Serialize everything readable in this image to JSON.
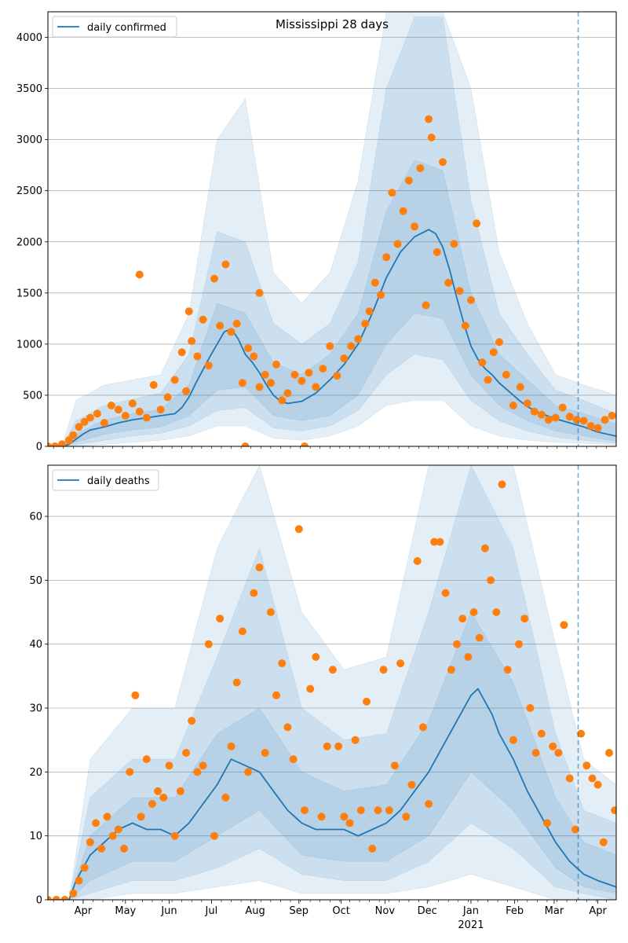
{
  "chart_data": [
    {
      "type": "line",
      "title": "Mississippi 28 days",
      "legend": "daily confirmed",
      "legend_position": "top-left",
      "ylim": [
        0,
        4250
      ],
      "yticks": [
        0,
        500,
        1000,
        1500,
        2000,
        2500,
        3000,
        3500,
        4000
      ],
      "xlim_days": [
        0,
        403
      ],
      "xlabel": "",
      "ylabel": "",
      "grid": "y",
      "vline_day": 376,
      "line": {
        "name": "daily confirmed",
        "days": [
          0,
          10,
          15,
          20,
          25,
          30,
          40,
          50,
          60,
          70,
          80,
          90,
          95,
          100,
          105,
          110,
          115,
          120,
          125,
          130,
          135,
          140,
          145,
          150,
          155,
          160,
          165,
          170,
          175,
          180,
          190,
          200,
          210,
          220,
          230,
          240,
          250,
          260,
          270,
          275,
          280,
          285,
          290,
          295,
          300,
          305,
          310,
          315,
          320,
          325,
          330,
          335,
          340,
          345,
          350,
          360,
          370,
          380,
          390,
          403
        ],
        "values": [
          0,
          0,
          20,
          70,
          120,
          160,
          190,
          230,
          260,
          280,
          300,
          320,
          380,
          480,
          620,
          750,
          880,
          1000,
          1120,
          1150,
          1050,
          900,
          820,
          720,
          600,
          500,
          440,
          420,
          430,
          440,
          520,
          650,
          800,
          1000,
          1300,
          1650,
          1900,
          2050,
          2120,
          2080,
          1950,
          1720,
          1450,
          1200,
          980,
          850,
          760,
          700,
          620,
          560,
          500,
          440,
          390,
          350,
          320,
          270,
          230,
          190,
          140,
          100
        ]
      },
      "bands": [
        {
          "days": [
            0,
            10,
            20,
            40,
            60,
            80,
            100,
            120,
            140,
            160,
            180,
            200,
            220,
            240,
            260,
            280,
            300,
            320,
            340,
            360,
            380,
            403
          ],
          "lower": [
            0,
            0,
            40,
            120,
            160,
            190,
            300,
            550,
            580,
            300,
            250,
            300,
            500,
            1000,
            1300,
            1250,
            700,
            400,
            250,
            150,
            100,
            50
          ],
          "upper": [
            0,
            0,
            120,
            260,
            320,
            360,
            600,
            1400,
            1300,
            820,
            700,
            900,
            1300,
            2300,
            2800,
            2700,
            1500,
            900,
            650,
            400,
            320,
            220
          ]
        },
        {
          "days": [
            0,
            10,
            20,
            40,
            60,
            80,
            100,
            120,
            140,
            160,
            180,
            200,
            220,
            240,
            260,
            280,
            300,
            320,
            340,
            360,
            380,
            403
          ],
          "lower": [
            0,
            0,
            15,
            60,
            100,
            130,
            200,
            350,
            380,
            180,
            150,
            200,
            350,
            700,
            900,
            850,
            450,
            250,
            150,
            90,
            60,
            30
          ],
          "upper": [
            0,
            0,
            250,
            400,
            460,
            520,
            900,
            2100,
            2000,
            1200,
            1000,
            1200,
            1800,
            3500,
            4200,
            4200,
            2400,
            1300,
            900,
            550,
            450,
            320
          ]
        },
        {
          "days": [
            0,
            10,
            20,
            40,
            60,
            80,
            100,
            120,
            140,
            160,
            180,
            200,
            220,
            240,
            260,
            280,
            300,
            320,
            340,
            360,
            380,
            403
          ],
          "lower": [
            0,
            0,
            0,
            20,
            40,
            60,
            100,
            200,
            200,
            80,
            60,
            100,
            200,
            400,
            450,
            450,
            200,
            100,
            60,
            40,
            30,
            10
          ],
          "upper": [
            0,
            0,
            450,
            600,
            650,
            700,
            1300,
            3000,
            3400,
            1700,
            1400,
            1700,
            2600,
            4300,
            4300,
            4300,
            3500,
            1900,
            1200,
            700,
            600,
            500
          ]
        }
      ],
      "scatter": {
        "days": [
          0,
          5,
          10,
          15,
          18,
          22,
          26,
          30,
          35,
          40,
          45,
          50,
          55,
          60,
          65,
          70,
          75,
          80,
          85,
          90,
          95,
          98,
          102,
          106,
          110,
          114,
          118,
          122,
          126,
          130,
          134,
          138,
          142,
          146,
          150,
          154,
          158,
          162,
          166,
          170,
          175,
          180,
          185,
          190,
          195,
          200,
          205,
          210,
          215,
          220,
          225,
          228,
          232,
          236,
          240,
          244,
          248,
          252,
          256,
          260,
          264,
          268,
          272,
          276,
          280,
          284,
          288,
          292,
          296,
          300,
          304,
          308,
          312,
          316,
          320,
          325,
          330,
          335,
          340,
          345,
          350,
          355,
          360,
          365,
          370,
          375,
          380,
          385,
          390,
          395,
          400,
          65,
          100,
          150,
          270,
          140,
          182
        ],
        "values": [
          0,
          0,
          20,
          60,
          110,
          190,
          240,
          280,
          320,
          230,
          400,
          360,
          300,
          420,
          340,
          280,
          600,
          360,
          480,
          650,
          920,
          540,
          1030,
          880,
          1240,
          790,
          1640,
          1180,
          1780,
          1120,
          1200,
          620,
          960,
          880,
          580,
          700,
          620,
          800,
          450,
          520,
          700,
          640,
          720,
          580,
          760,
          980,
          690,
          860,
          980,
          1050,
          1200,
          1320,
          1600,
          1480,
          1850,
          2480,
          1980,
          2300,
          2600,
          2150,
          2720,
          1380,
          3020,
          1900,
          2780,
          1600,
          1980,
          1520,
          1180,
          1430,
          2180,
          820,
          650,
          920,
          1020,
          700,
          400,
          580,
          420,
          340,
          310,
          260,
          280,
          380,
          290,
          260,
          250,
          200,
          180,
          260,
          300,
          1680,
          1320,
          1500,
          3200,
          0,
          0
        ]
      }
    },
    {
      "type": "line",
      "title": "",
      "legend": "daily deaths",
      "legend_position": "top-left",
      "ylim": [
        0,
        68
      ],
      "yticks": [
        0,
        10,
        20,
        30,
        40,
        50,
        60
      ],
      "xlim_days": [
        0,
        403
      ],
      "xlabel": "",
      "ylabel": "",
      "grid": "y",
      "vline_day": 376,
      "x_tick_labels": [
        {
          "day": 25,
          "label": "Apr"
        },
        {
          "day": 55,
          "label": "May"
        },
        {
          "day": 86,
          "label": "Jun"
        },
        {
          "day": 116,
          "label": "Jul"
        },
        {
          "day": 147,
          "label": "Aug"
        },
        {
          "day": 178,
          "label": "Sep"
        },
        {
          "day": 208,
          "label": "Oct"
        },
        {
          "day": 239,
          "label": "Nov"
        },
        {
          "day": 269,
          "label": "Dec"
        },
        {
          "day": 300,
          "label": "Jan"
        },
        {
          "day": 331,
          "label": "Feb"
        },
        {
          "day": 359,
          "label": "Mar"
        },
        {
          "day": 390,
          "label": "Apr"
        }
      ],
      "x_year_label": {
        "day": 300,
        "label": "2021"
      },
      "line": {
        "name": "daily deaths",
        "days": [
          0,
          15,
          20,
          25,
          30,
          40,
          50,
          60,
          70,
          80,
          90,
          100,
          110,
          120,
          130,
          140,
          150,
          160,
          170,
          180,
          190,
          200,
          210,
          220,
          230,
          240,
          250,
          260,
          270,
          280,
          290,
          300,
          305,
          310,
          315,
          320,
          330,
          340,
          350,
          360,
          370,
          380,
          390,
          403
        ],
        "values": [
          0,
          0,
          3,
          5,
          7,
          9,
          11,
          12,
          11,
          11,
          10,
          12,
          15,
          18,
          22,
          21,
          20,
          17,
          14,
          12,
          11,
          11,
          11,
          10,
          11,
          12,
          14,
          17,
          20,
          24,
          28,
          32,
          33,
          31,
          29,
          26,
          22,
          17,
          13,
          9,
          6,
          4,
          3,
          2
        ]
      },
      "bands": [
        {
          "days": [
            0,
            15,
            30,
            60,
            90,
            120,
            150,
            180,
            210,
            240,
            270,
            300,
            330,
            360,
            380,
            403
          ],
          "lower": [
            0,
            0,
            3,
            6,
            6,
            10,
            14,
            7,
            6,
            6,
            10,
            20,
            14,
            5,
            2,
            1
          ],
          "upper": [
            0,
            0,
            10,
            16,
            16,
            26,
            30,
            20,
            17,
            18,
            28,
            45,
            34,
            16,
            9,
            7
          ]
        },
        {
          "days": [
            0,
            15,
            30,
            60,
            90,
            120,
            150,
            180,
            210,
            240,
            270,
            300,
            330,
            360,
            380,
            403
          ],
          "lower": [
            0,
            0,
            1,
            3,
            3,
            5,
            8,
            4,
            3,
            3,
            6,
            12,
            8,
            2,
            1,
            0
          ],
          "upper": [
            0,
            0,
            16,
            22,
            22,
            38,
            55,
            30,
            25,
            26,
            45,
            68,
            55,
            26,
            14,
            12
          ]
        },
        {
          "days": [
            0,
            15,
            30,
            60,
            90,
            120,
            150,
            180,
            210,
            240,
            270,
            300,
            330,
            360,
            380,
            403
          ],
          "lower": [
            0,
            0,
            0,
            1,
            1,
            2,
            3,
            1,
            1,
            1,
            2,
            4,
            2,
            0,
            0,
            0
          ],
          "upper": [
            0,
            0,
            22,
            30,
            30,
            55,
            68,
            45,
            36,
            38,
            68,
            68,
            68,
            40,
            22,
            18
          ]
        }
      ],
      "scatter": {
        "days": [
          0,
          6,
          12,
          18,
          22,
          26,
          30,
          34,
          38,
          42,
          46,
          50,
          54,
          58,
          62,
          66,
          70,
          74,
          78,
          82,
          86,
          90,
          94,
          98,
          102,
          106,
          110,
          114,
          118,
          122,
          126,
          130,
          134,
          138,
          142,
          146,
          150,
          154,
          158,
          162,
          166,
          170,
          174,
          178,
          182,
          186,
          190,
          194,
          198,
          202,
          206,
          210,
          214,
          218,
          222,
          226,
          230,
          234,
          238,
          242,
          246,
          250,
          254,
          258,
          262,
          266,
          270,
          274,
          278,
          282,
          286,
          290,
          294,
          298,
          302,
          306,
          310,
          314,
          318,
          322,
          326,
          330,
          334,
          338,
          342,
          346,
          350,
          354,
          358,
          362,
          366,
          370,
          374,
          378,
          382,
          386,
          390,
          394,
          398,
          402
        ],
        "values": [
          0,
          0,
          0,
          1,
          3,
          5,
          9,
          12,
          8,
          13,
          10,
          11,
          8,
          20,
          32,
          13,
          22,
          15,
          17,
          16,
          21,
          10,
          17,
          23,
          28,
          20,
          21,
          40,
          10,
          44,
          16,
          24,
          34,
          42,
          20,
          48,
          52,
          23,
          45,
          32,
          37,
          27,
          22,
          58,
          14,
          33,
          38,
          13,
          24,
          36,
          24,
          13,
          12,
          25,
          14,
          31,
          8,
          14,
          36,
          14,
          21,
          37,
          13,
          18,
          53,
          27,
          15,
          56,
          56,
          48,
          36,
          40,
          44,
          38,
          45,
          41,
          55,
          50,
          45,
          65,
          36,
          25,
          40,
          44,
          30,
          23,
          26,
          12,
          24,
          23,
          43,
          19,
          11,
          26,
          21,
          19,
          18,
          9,
          23,
          14
        ]
      }
    }
  ]
}
